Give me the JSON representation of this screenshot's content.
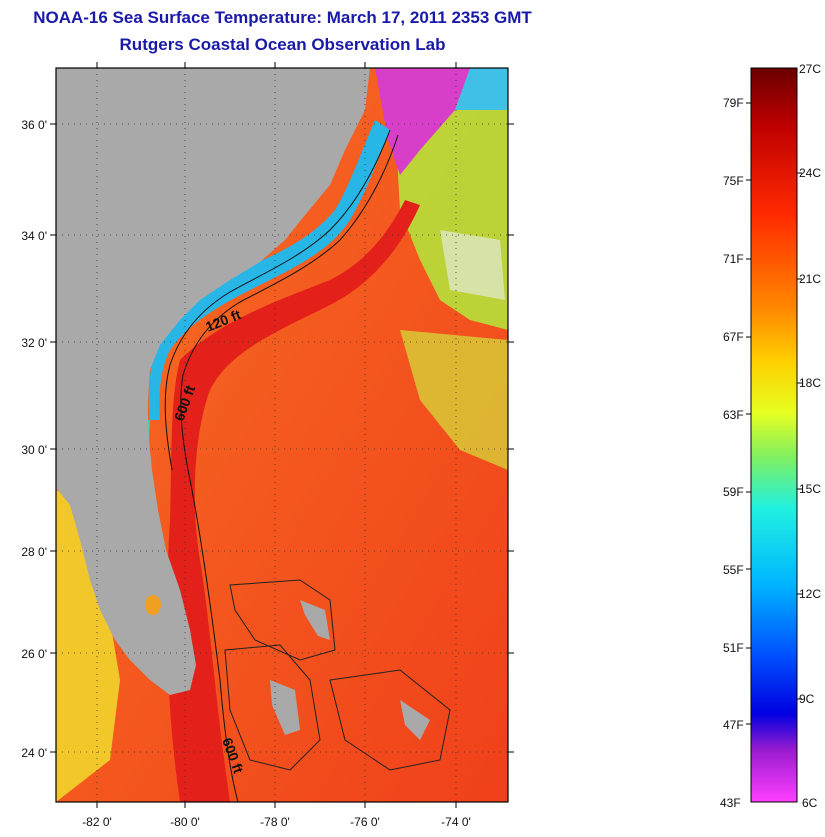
{
  "title": "NOAA-16 Sea Surface Temperature:  March 17, 2011 2353 GMT",
  "subtitle": "Rutgers Coastal Ocean Observation Lab",
  "map": {
    "lat_ticks": [
      "24 0'",
      "26 0'",
      "28 0'",
      "30 0'",
      "32 0'",
      "34 0'",
      "36 0'"
    ],
    "lon_ticks": [
      "-82 0'",
      "-80 0'",
      "-78 0'",
      "-76 0'",
      "-74 0'"
    ],
    "contour_labels": [
      "120 ft",
      "600 ft",
      "600 ft"
    ],
    "colors": {
      "land": "#a9a9a9",
      "gulf_stream": "#e8241c",
      "warm": "#f5501e",
      "shelf": "#27b6e6",
      "cold": "#d946c8"
    }
  },
  "colorbar": {
    "fahrenheit": [
      "79F",
      "75F",
      "71F",
      "67F",
      "63F",
      "59F",
      "55F",
      "51F",
      "47F",
      "43F"
    ],
    "celsius": [
      "27C",
      "24C",
      "21C",
      "18C",
      "15C",
      "12C",
      "9C",
      "6C"
    ],
    "stops": [
      "#6a0000",
      "#c00000",
      "#ff2a00",
      "#ff8a00",
      "#ffd000",
      "#e6ff20",
      "#80f060",
      "#20f0e0",
      "#00b8ff",
      "#0050ff",
      "#0000e0",
      "#9b1bd0",
      "#ff40ff"
    ]
  }
}
